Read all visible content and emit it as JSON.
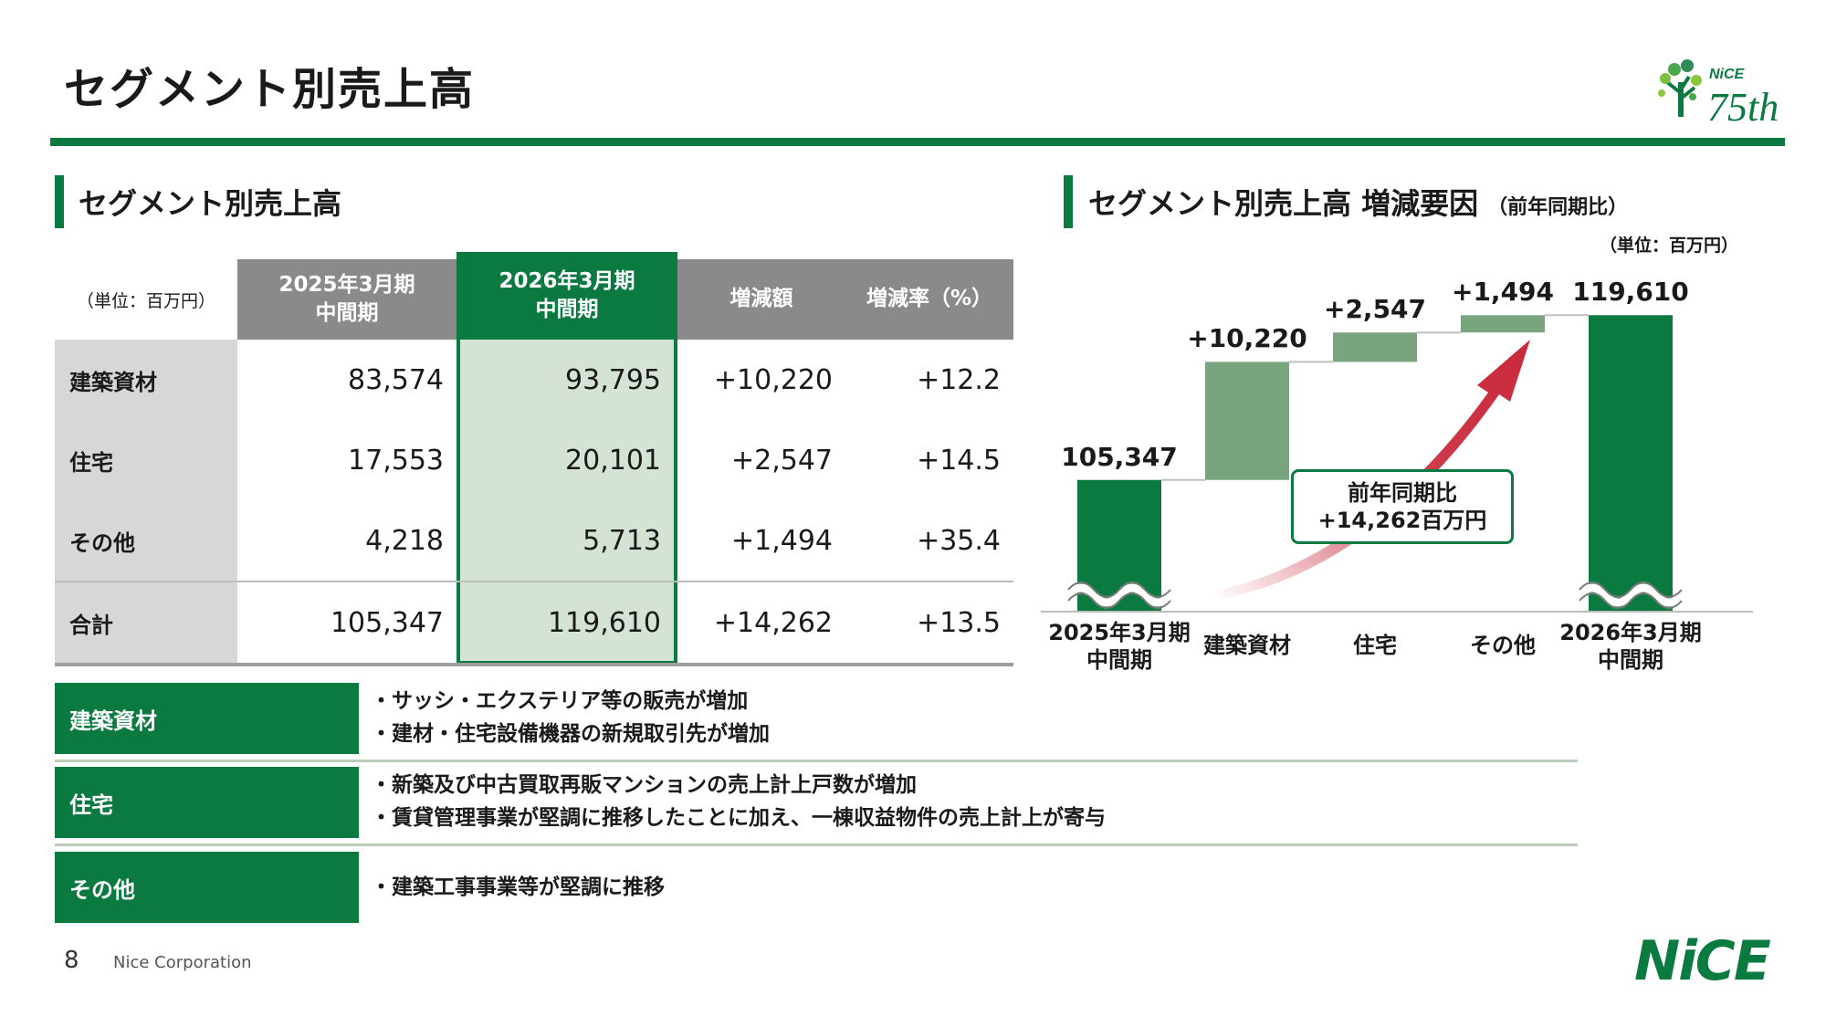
{
  "header": {
    "title": "セグメント別売上高",
    "logo_text": "NiCE",
    "logo_anniversary": "75th"
  },
  "table_section": {
    "title": "セグメント別売上高",
    "unit": "（単位：百万円）",
    "columns": [
      "2025年3月期\n中間期",
      "2026年3月期\n中間期",
      "増減額",
      "増減率（%）"
    ],
    "column_lines": [
      [
        "2025年3月期",
        "中間期"
      ],
      [
        "2026年3月期",
        "中間期"
      ],
      [
        "増減額"
      ],
      [
        "増減率（%）"
      ]
    ],
    "rows": [
      {
        "label": "建築資材",
        "prev": "83,574",
        "curr": "93,795",
        "diff": "+10,220",
        "rate": "+12.2"
      },
      {
        "label": "住宅",
        "prev": "17,553",
        "curr": "20,101",
        "diff": "+2,547",
        "rate": "+14.5"
      },
      {
        "label": "その他",
        "prev": "4,218",
        "curr": "5,713",
        "diff": "+1,494",
        "rate": "+35.4"
      },
      {
        "label": "合計",
        "prev": "105,347",
        "curr": "119,610",
        "diff": "+14,262",
        "rate": "+13.5"
      }
    ]
  },
  "chart_section": {
    "title": "セグメント別売上高 増減要因",
    "subtitle": "（前年同期比）",
    "unit": "（単位：百万円）",
    "callout": [
      "前年同期比",
      "+14,262百万円"
    ]
  },
  "chart_data": {
    "type": "bar",
    "subtype": "waterfall",
    "categories": [
      "2025年3月期 中間期",
      "建築資材",
      "住宅",
      "その他",
      "2026年3月期 中間期"
    ],
    "category_lines": [
      [
        "2025年3月期",
        "中間期"
      ],
      [
        "建築資材"
      ],
      [
        "住宅"
      ],
      [
        "その他"
      ],
      [
        "2026年3月期",
        "中間期"
      ]
    ],
    "values": [
      105347,
      10220,
      2547,
      1494,
      119610
    ],
    "labels": [
      "105,347",
      "+10,220",
      "+2,547",
      "+1,494",
      "119,610"
    ],
    "kinds": [
      "total",
      "increase",
      "increase",
      "increase",
      "total"
    ],
    "axis_break": true,
    "colors": {
      "total": "#0b7a40",
      "increase": "#78a47e",
      "arrow": "#c8283a"
    }
  },
  "descriptions": [
    {
      "label": "建築資材",
      "lines": [
        "・サッシ・エクステリア等の販売が増加",
        "・建材・住宅設備機器の新規取引先が増加"
      ]
    },
    {
      "label": "住宅",
      "lines": [
        "・新築及び中古買取再販マンションの売上計上戸数が増加",
        "・賃貸管理事業が堅調に推移したことに加え、一棟収益物件の売上計上が寄与"
      ]
    },
    {
      "label": "その他",
      "lines": [
        "・建築工事事業等が堅調に推移"
      ]
    }
  ],
  "footer": {
    "page": "8",
    "company": "Nice Corporation",
    "logo": "NiCE"
  },
  "colors": {
    "brand_green": "#0b7a40",
    "light_green": "#d4e3d4",
    "gray_header": "#8a8a8a",
    "row_gray": "#d7d7d7"
  }
}
